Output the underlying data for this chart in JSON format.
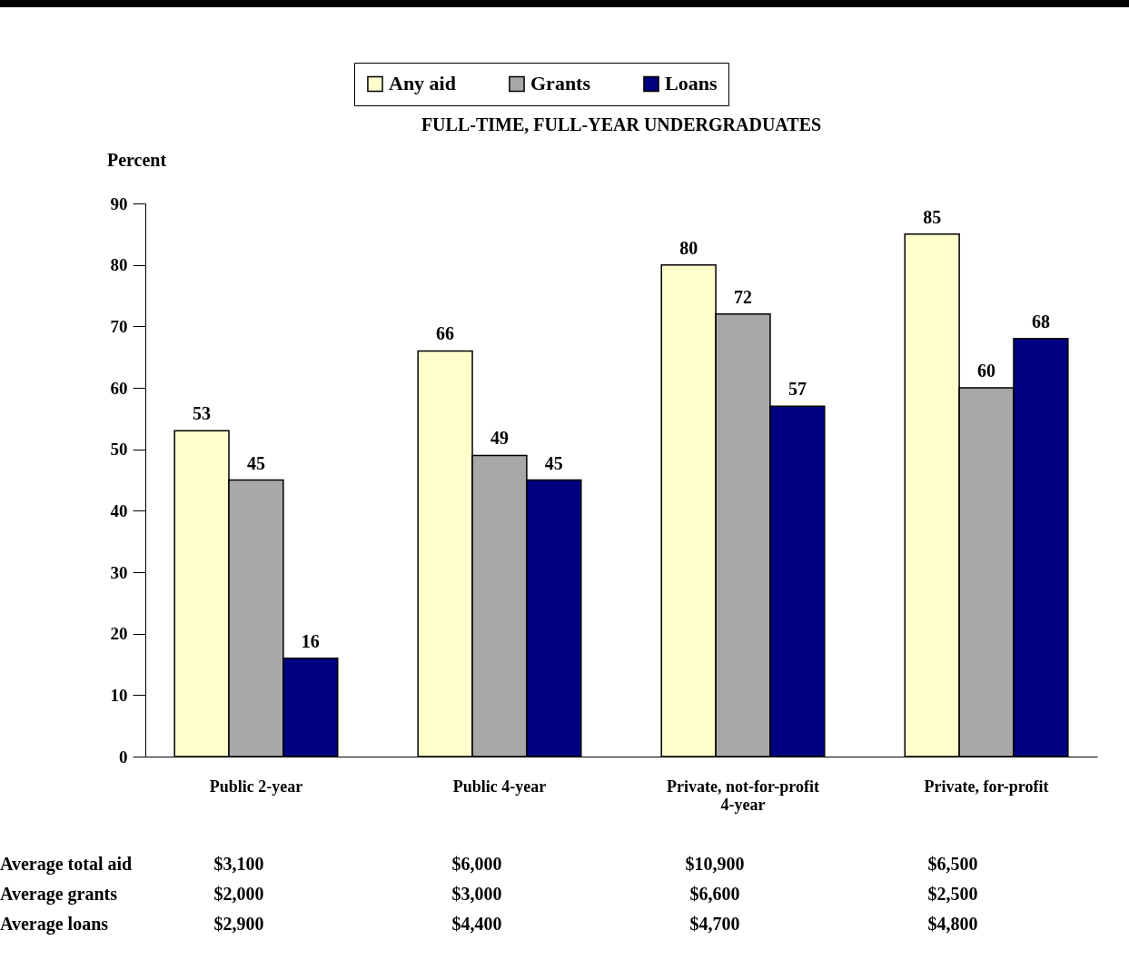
{
  "chart_data": {
    "type": "bar",
    "title": "FULL-TIME, FULL-YEAR UNDERGRADUATES",
    "ylabel": "Percent",
    "categories": [
      "Public 2-year",
      "Public 4-year",
      "Private, not-for-profit 4-year",
      "Private, for-profit"
    ],
    "series": [
      {
        "name": "Any aid",
        "color": "#ffffcc",
        "values": [
          53,
          66,
          80,
          85
        ]
      },
      {
        "name": "Grants",
        "color": "#a8a8a8",
        "values": [
          45,
          49,
          72,
          60
        ]
      },
      {
        "name": "Loans",
        "color": "#000080",
        "values": [
          16,
          45,
          57,
          68
        ]
      }
    ],
    "ylim": [
      0,
      90
    ],
    "yticks": [
      0,
      10,
      20,
      30,
      40,
      50,
      60,
      70,
      80,
      90
    ],
    "data_labels": true,
    "legend": "top",
    "annotations": [
      "Average total aid",
      "$3,100",
      "$6,000",
      "$10,900",
      "$6,500",
      "Average grants",
      "$2,000",
      "$3,000",
      "$6,600",
      "$2,500",
      "Average loans",
      "$2,900",
      "$4,400",
      "$4,700",
      "$4,800"
    ]
  }
}
